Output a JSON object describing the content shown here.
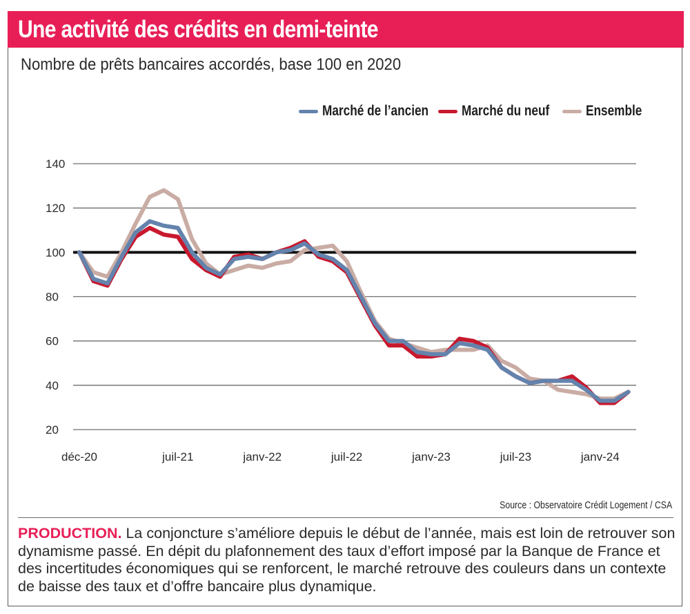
{
  "header": {
    "title": "Une activité des crédits en demi-teinte",
    "subtitle": "Nombre de prêts bancaires accordés, base 100 en 2020",
    "accent_color": "#e81f57"
  },
  "legend": [
    {
      "name": "Marché de l’ancien",
      "color": "#6383ad"
    },
    {
      "name": "Marché du neuf",
      "color": "#c8192e"
    },
    {
      "name": "Ensemble",
      "color": "#c9aca4"
    }
  ],
  "source": "Source : Observatoire Crédit Logement / CSA",
  "caption": {
    "lead": "PRODUCTION.",
    "text": " La conjoncture s’améliore depuis le début de l’année, mais est loin de retrouver son dynamisme passé. En dépit du plafonnement des taux d’effort imposé par la Banque de France et des incertitudes économiques qui se renforcent, le marché retrouve des couleurs dans un contexte de baisse des taux et d’offre bancaire plus dynamique."
  },
  "chart_data": {
    "type": "line",
    "title": "Une activité des crédits en demi-teinte",
    "subtitle": "Nombre de prêts bancaires accordés, base 100 en 2020",
    "xlabel": "",
    "ylabel": "",
    "ylim": [
      20,
      140
    ],
    "yticks": [
      20,
      40,
      60,
      80,
      100,
      120,
      140
    ],
    "xtick_labels": [
      {
        "label": "déc-20",
        "index": 0
      },
      {
        "label": "juil-21",
        "index": 7
      },
      {
        "label": "janv-22",
        "index": 13
      },
      {
        "label": "juil-22",
        "index": 19
      },
      {
        "label": "janv-23",
        "index": 25
      },
      {
        "label": "juil-23",
        "index": 31
      },
      {
        "label": "janv-24",
        "index": 37
      }
    ],
    "x": [
      "déc-20",
      "janv-21",
      "févr-21",
      "mars-21",
      "avr-21",
      "mai-21",
      "juin-21",
      "juil-21",
      "août-21",
      "sept-21",
      "oct-21",
      "nov-21",
      "déc-21",
      "janv-22",
      "févr-22",
      "mars-22",
      "avr-22",
      "mai-22",
      "juin-22",
      "juil-22",
      "août-22",
      "sept-22",
      "oct-22",
      "nov-22",
      "déc-22",
      "janv-23",
      "févr-23",
      "mars-23",
      "avr-23",
      "mai-23",
      "juin-23",
      "juil-23",
      "août-23",
      "sept-23",
      "oct-23",
      "nov-23",
      "déc-23",
      "janv-24",
      "févr-24",
      "mars-24"
    ],
    "reference_line": 100,
    "grid": true,
    "legend_position": "top-right",
    "series": [
      {
        "name": "Marché de l’ancien",
        "color": "#6383ad",
        "values": [
          100,
          88,
          86,
          98,
          109,
          114,
          112,
          111,
          100,
          93,
          90,
          97,
          98,
          97,
          100,
          101,
          104,
          99,
          97,
          92,
          80,
          68,
          60,
          60,
          55,
          54,
          54,
          59,
          58,
          56,
          48,
          44,
          41,
          42,
          42,
          42,
          38,
          33,
          33,
          37
        ]
      },
      {
        "name": "Marché du neuf",
        "color": "#c8192e",
        "values": [
          100,
          87,
          85,
          97,
          107,
          111,
          108,
          107,
          97,
          92,
          89,
          98,
          99,
          97,
          100,
          102,
          105,
          98,
          96,
          91,
          79,
          67,
          58,
          58,
          53,
          53,
          54,
          61,
          60,
          57,
          48,
          44,
          41,
          42,
          42,
          44,
          39,
          32,
          32,
          37
        ]
      },
      {
        "name": "Ensemble",
        "color": "#c9aca4",
        "values": [
          100,
          91,
          89,
          100,
          113,
          125,
          128,
          124,
          106,
          95,
          90,
          92,
          94,
          93,
          95,
          96,
          101,
          102,
          103,
          96,
          82,
          69,
          61,
          59,
          57,
          55,
          56,
          56,
          56,
          58,
          51,
          48,
          43,
          42,
          38,
          37,
          36,
          34,
          34,
          37
        ]
      }
    ]
  }
}
